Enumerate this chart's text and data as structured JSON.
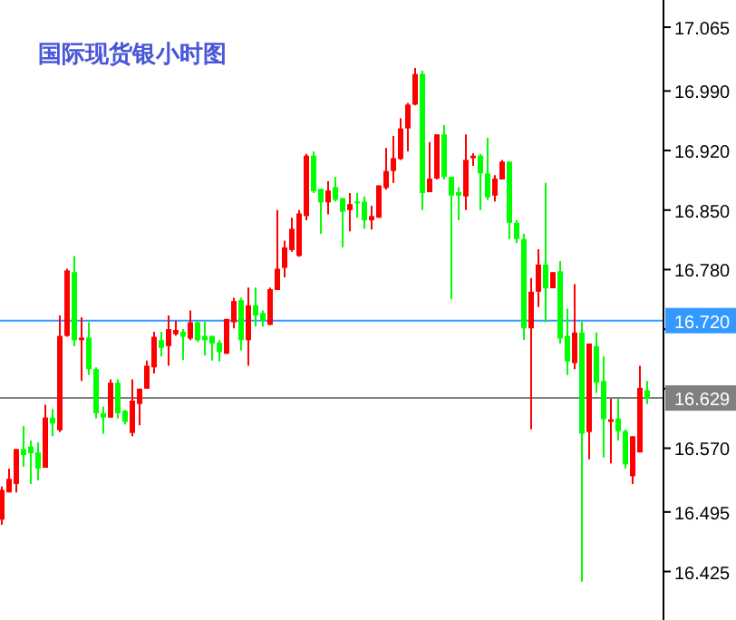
{
  "chart_data": {
    "type": "candlestick",
    "title": "国际现货银小时图",
    "categories": [
      null,
      null,
      null,
      null,
      null,
      null,
      null,
      null,
      null,
      null,
      null,
      null,
      null,
      null,
      null,
      null,
      null,
      null,
      null,
      null,
      null,
      null,
      null,
      null,
      null,
      null,
      null,
      null,
      null,
      null,
      null,
      null,
      null,
      null,
      null,
      null,
      null,
      null,
      null,
      null,
      null,
      null,
      null,
      null,
      null,
      null,
      null,
      null,
      null,
      null,
      null,
      null,
      null,
      null,
      null,
      null,
      null,
      null,
      null,
      null,
      null,
      null,
      null,
      null,
      null,
      null,
      null,
      null,
      null,
      null,
      null,
      null,
      null,
      null,
      null,
      null,
      null,
      null,
      null,
      null,
      null,
      null,
      null,
      null,
      null,
      null,
      null,
      null,
      null,
      null
    ],
    "ohlc": [
      [
        16.486,
        16.525,
        16.48,
        16.521
      ],
      [
        16.518,
        16.546,
        16.518,
        16.534
      ],
      [
        16.528,
        16.569,
        16.518,
        16.569
      ],
      [
        16.569,
        16.596,
        16.548,
        16.562
      ],
      [
        16.572,
        16.579,
        16.528,
        16.564
      ],
      [
        16.565,
        16.577,
        16.532,
        16.546
      ],
      [
        16.547,
        16.621,
        16.547,
        16.606
      ],
      [
        16.606,
        16.616,
        16.584,
        16.599
      ],
      [
        16.591,
        16.726,
        16.589,
        16.702
      ],
      [
        16.702,
        16.781,
        16.701,
        16.779
      ],
      [
        16.777,
        16.796,
        16.69,
        16.697
      ],
      [
        16.697,
        16.724,
        16.649,
        16.7
      ],
      [
        16.7,
        16.718,
        16.656,
        16.663
      ],
      [
        16.663,
        16.665,
        16.605,
        16.611
      ],
      [
        16.611,
        16.619,
        16.587,
        16.606
      ],
      [
        16.606,
        16.651,
        16.606,
        16.647
      ],
      [
        16.647,
        16.651,
        16.605,
        16.611
      ],
      [
        16.614,
        16.615,
        16.598,
        16.601
      ],
      [
        16.588,
        16.651,
        16.584,
        16.626
      ],
      [
        16.622,
        16.64,
        16.597,
        16.64
      ],
      [
        16.64,
        16.673,
        16.64,
        16.667
      ],
      [
        16.665,
        16.707,
        16.658,
        16.701
      ],
      [
        16.697,
        16.707,
        16.678,
        16.688
      ],
      [
        16.69,
        16.726,
        16.667,
        16.71
      ],
      [
        16.704,
        16.72,
        16.702,
        16.709
      ],
      [
        16.707,
        16.71,
        16.674,
        16.701
      ],
      [
        16.699,
        16.732,
        16.697,
        16.718
      ],
      [
        16.718,
        16.719,
        16.695,
        16.697
      ],
      [
        16.702,
        16.719,
        16.679,
        16.697
      ],
      [
        16.702,
        16.702,
        16.673,
        16.693
      ],
      [
        16.694,
        16.697,
        16.672,
        16.683
      ],
      [
        16.681,
        16.722,
        16.681,
        16.722
      ],
      [
        16.718,
        16.747,
        16.711,
        16.743
      ],
      [
        16.744,
        16.747,
        16.685,
        16.697
      ],
      [
        16.697,
        16.759,
        16.667,
        16.738
      ],
      [
        16.738,
        16.759,
        16.713,
        16.726
      ],
      [
        16.729,
        16.732,
        16.713,
        16.72
      ],
      [
        16.715,
        16.759,
        16.715,
        16.757
      ],
      [
        16.756,
        16.85,
        16.756,
        16.781
      ],
      [
        16.782,
        16.814,
        16.771,
        16.806
      ],
      [
        16.803,
        16.841,
        16.801,
        16.828
      ],
      [
        16.796,
        16.85,
        16.795,
        16.846
      ],
      [
        16.843,
        16.916,
        16.838,
        16.914
      ],
      [
        16.914,
        16.919,
        16.87,
        16.872
      ],
      [
        16.875,
        16.875,
        16.822,
        16.859
      ],
      [
        16.859,
        16.884,
        16.845,
        16.873
      ],
      [
        16.877,
        16.889,
        16.86,
        16.862
      ],
      [
        16.864,
        16.864,
        16.806,
        16.848
      ],
      [
        16.85,
        16.87,
        16.825,
        16.857
      ],
      [
        16.86,
        16.87,
        16.841,
        16.859
      ],
      [
        16.86,
        16.866,
        16.828,
        16.838
      ],
      [
        16.838,
        16.855,
        16.827,
        16.843
      ],
      [
        16.841,
        16.879,
        16.841,
        16.879
      ],
      [
        16.876,
        16.923,
        16.874,
        16.896
      ],
      [
        16.896,
        16.937,
        16.882,
        16.911
      ],
      [
        16.91,
        16.958,
        16.909,
        16.946
      ],
      [
        16.946,
        16.976,
        16.919,
        16.974
      ],
      [
        16.974,
        17.017,
        16.973,
        17.01
      ],
      [
        17.01,
        17.014,
        16.85,
        16.87
      ],
      [
        16.871,
        16.93,
        16.871,
        16.887
      ],
      [
        16.887,
        16.939,
        16.886,
        16.939
      ],
      [
        16.939,
        16.95,
        16.886,
        16.889
      ],
      [
        16.889,
        16.889,
        16.745,
        16.867
      ],
      [
        16.871,
        16.877,
        16.838,
        16.867
      ],
      [
        16.866,
        16.939,
        16.85,
        16.909
      ],
      [
        16.911,
        16.917,
        16.902,
        16.914
      ],
      [
        16.914,
        16.916,
        16.85,
        16.893
      ],
      [
        16.893,
        16.935,
        16.862,
        16.865
      ],
      [
        16.867,
        16.891,
        16.86,
        16.887
      ],
      [
        16.886,
        16.909,
        16.886,
        16.907
      ],
      [
        16.907,
        16.907,
        16.816,
        16.835
      ],
      [
        16.835,
        16.838,
        16.811,
        16.816
      ],
      [
        16.816,
        16.822,
        16.697,
        16.711
      ],
      [
        16.711,
        16.77,
        16.592,
        16.754
      ],
      [
        16.754,
        16.804,
        16.736,
        16.786
      ],
      [
        16.786,
        16.882,
        16.718,
        16.758
      ],
      [
        16.758,
        16.777,
        16.758,
        16.777
      ],
      [
        16.778,
        16.79,
        16.693,
        16.699
      ],
      [
        16.702,
        16.734,
        16.656,
        16.672
      ],
      [
        16.67,
        16.763,
        16.663,
        16.706
      ],
      [
        16.706,
        16.719,
        16.413,
        16.587
      ],
      [
        16.589,
        16.693,
        16.557,
        16.693
      ],
      [
        16.69,
        16.706,
        16.635,
        16.647
      ],
      [
        16.649,
        16.678,
        16.559,
        16.604
      ],
      [
        16.601,
        16.628,
        16.552,
        16.604
      ],
      [
        16.605,
        16.628,
        16.579,
        16.59
      ],
      [
        16.59,
        16.592,
        16.546,
        16.551
      ],
      [
        16.537,
        16.584,
        16.528,
        16.584
      ],
      [
        16.565,
        16.667,
        16.565,
        16.641
      ],
      [
        16.638,
        16.649,
        16.622,
        16.629
      ]
    ],
    "colors": [
      "#ff0000",
      "#ff0000",
      "#ff0000",
      "#00ff00",
      "#00ff00",
      "#00ff00",
      "#ff0000",
      "#00ff00",
      "#ff0000",
      "#ff0000",
      "#00ff00",
      "#ff0000",
      "#00ff00",
      "#00ff00",
      "#00ff00",
      "#ff0000",
      "#00ff00",
      "#00ff00",
      "#ff0000",
      "#ff0000",
      "#ff0000",
      "#ff0000",
      "#00ff00",
      "#ff0000",
      "#ff0000",
      "#00ff00",
      "#ff0000",
      "#00ff00",
      "#00ff00",
      "#00ff00",
      "#00ff00",
      "#ff0000",
      "#ff0000",
      "#00ff00",
      "#ff0000",
      "#00ff00",
      "#00ff00",
      "#ff0000",
      "#ff0000",
      "#ff0000",
      "#ff0000",
      "#ff0000",
      "#ff0000",
      "#00ff00",
      "#00ff00",
      "#ff0000",
      "#00ff00",
      "#00ff00",
      "#ff0000",
      "#00ff00",
      "#00ff00",
      "#ff0000",
      "#ff0000",
      "#ff0000",
      "#ff0000",
      "#ff0000",
      "#ff0000",
      "#ff0000",
      "#00ff00",
      "#ff0000",
      "#ff0000",
      "#00ff00",
      "#00ff00",
      "#00ff00",
      "#ff0000",
      "#ff0000",
      "#00ff00",
      "#00ff00",
      "#ff0000",
      "#ff0000",
      "#00ff00",
      "#00ff00",
      "#00ff00",
      "#ff0000",
      "#ff0000",
      "#00ff00",
      "#ff0000",
      "#00ff00",
      "#00ff00",
      "#ff0000",
      "#00ff00",
      "#ff0000",
      "#00ff00",
      "#00ff00",
      "#ff0000",
      "#00ff00",
      "#00ff00",
      "#ff0000",
      "#ff0000",
      "#00ff00"
    ],
    "ylim": [
      16.368,
      17.097
    ],
    "yticks": [
      17.065,
      {
        "value": 16.99,
        "label": "16.990"
      },
      {
        "value": 16.92,
        "label": "16.920"
      },
      {
        "value": 16.85,
        "label": "16.850"
      },
      {
        "value": 16.78,
        "label": "16.780"
      },
      {
        "value": 16.71,
        "label": null
      },
      {
        "value": 16.64,
        "label": null
      },
      {
        "value": 16.57,
        "label": "16.570"
      },
      16.495,
      16.425
    ],
    "ref_lines": [
      {
        "axis": "y",
        "value": 16.72,
        "label": "16.720",
        "color": "#3399ff"
      },
      {
        "axis": "y",
        "value": 16.629,
        "label": "16.629",
        "color": "#808080"
      }
    ],
    "tick_labels": "y",
    "grid": false
  }
}
